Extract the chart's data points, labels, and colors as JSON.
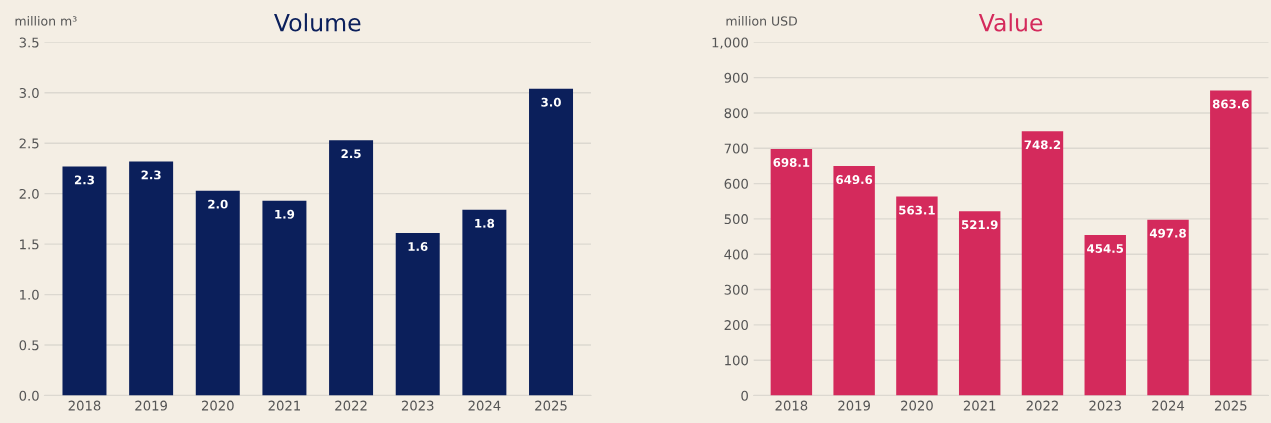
{
  "chart_data": [
    {
      "type": "bar",
      "title": "Volume",
      "ylabel": "million m³",
      "categories": [
        "2018",
        "2019",
        "2020",
        "2021",
        "2022",
        "2023",
        "2024",
        "2025"
      ],
      "series": [
        {
          "color": "#0b1f5b",
          "values": [
            2.27,
            2.32,
            2.03,
            1.93,
            2.53,
            1.61,
            1.84,
            3.04
          ],
          "value_labels": [
            "2.3",
            "2.3",
            "2.0",
            "1.9",
            "2.5",
            "1.6",
            "1.8",
            "3.0"
          ]
        }
      ],
      "ylim": [
        0,
        3.5
      ],
      "yticks": [
        {
          "value": 0,
          "label": "0.0"
        },
        {
          "value": 0.5,
          "label": "0.5"
        },
        {
          "value": 1,
          "label": "1.0"
        },
        {
          "value": 1.5,
          "label": "1.5"
        },
        {
          "value": 2,
          "label": "2.0"
        },
        {
          "value": 2.5,
          "label": "2.5"
        },
        {
          "value": 3,
          "label": "3.0"
        },
        {
          "value": 3.5,
          "label": "3.5"
        }
      ],
      "grid": "y",
      "legend": false
    },
    {
      "type": "bar",
      "title": "Value",
      "ylabel": "million USD",
      "categories": [
        "2018",
        "2019",
        "2020",
        "2021",
        "2022",
        "2023",
        "2024",
        "2025"
      ],
      "series": [
        {
          "color": "#d42a5c",
          "values": [
            698.1,
            649.6,
            563.1,
            521.9,
            748.2,
            454.5,
            497.8,
            863.6
          ]
        }
      ],
      "data_labels": true,
      "ylim": [
        0,
        1000
      ],
      "yticks": [
        0,
        100,
        200,
        300,
        400,
        500,
        600,
        700,
        800,
        900,
        {
          "value": 1000,
          "label": "1,000"
        }
      ],
      "grid": "y",
      "legend": false
    }
  ]
}
